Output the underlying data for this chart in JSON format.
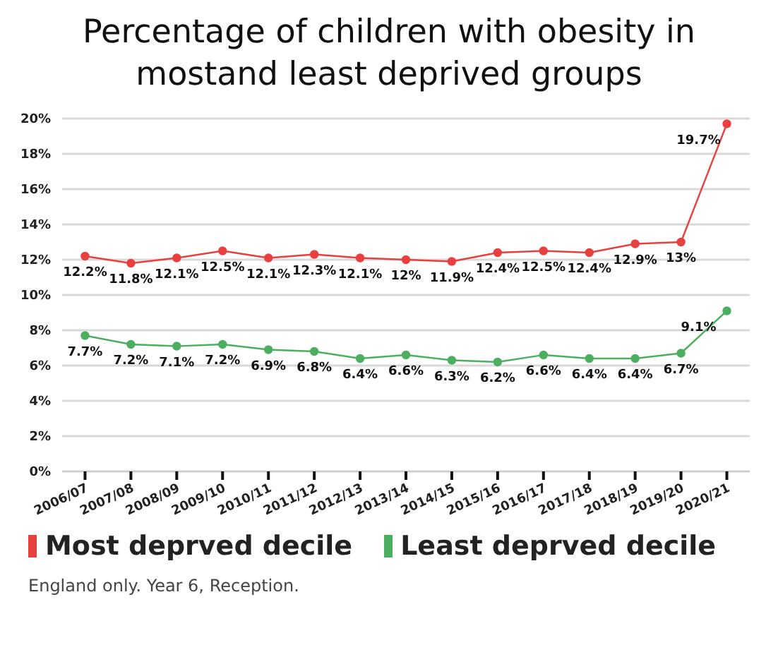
{
  "chart_data": {
    "type": "line",
    "title": "Percentage of children with obesity in mostand least deprived groups",
    "categories": [
      "2006/07",
      "2007/08",
      "2008/09",
      "2009/10",
      "2010/11",
      "2011/12",
      "2012/13",
      "2013/14",
      "2014/15",
      "2015/16",
      "2016/17",
      "2017/18",
      "2018/19",
      "2019/20",
      "2020/21"
    ],
    "series": [
      {
        "name": "Most deprved decile",
        "color": "#e8403f",
        "values": [
          12.2,
          11.8,
          12.1,
          12.5,
          12.1,
          12.3,
          12.1,
          12,
          11.9,
          12.4,
          12.5,
          12.4,
          12.9,
          13,
          19.7
        ],
        "value_labels": [
          "12.2%",
          "11.8%",
          "12.1%",
          "12.5%",
          "12.1%",
          "12.3%",
          "12.1%",
          "12%",
          "11.9%",
          "12.4%",
          "12.5%",
          "12.4%",
          "12.9%",
          "13%",
          "19.7%"
        ]
      },
      {
        "name": "Least deprved decile",
        "color": "#4caf5f",
        "values": [
          7.7,
          7.2,
          7.1,
          7.2,
          6.9,
          6.8,
          6.4,
          6.6,
          6.3,
          6.2,
          6.6,
          6.4,
          6.4,
          6.7,
          9.1
        ],
        "value_labels": [
          "7.7%",
          "7.2%",
          "7.1%",
          "7.2%",
          "6.9%",
          "6.8%",
          "6.4%",
          "6.6%",
          "6.3%",
          "6.2%",
          "6.6%",
          "6.4%",
          "6.4%",
          "6.7%",
          "9.1%"
        ]
      }
    ],
    "ylim": [
      0,
      20
    ],
    "yticks": [
      {
        "value": 0,
        "label": "0%"
      },
      {
        "value": 2,
        "label": "2%"
      },
      {
        "value": 4,
        "label": "4%"
      },
      {
        "value": 6,
        "label": "6%"
      },
      {
        "value": 8,
        "label": "8%"
      },
      {
        "value": 10,
        "label": "10%"
      },
      {
        "value": 12,
        "label": "12%"
      },
      {
        "value": 14,
        "label": "14%"
      },
      {
        "value": 16,
        "label": "16%"
      },
      {
        "value": 18,
        "label": "18%"
      },
      {
        "value": 20,
        "label": "20%"
      }
    ],
    "grid": "y",
    "legend": "bottom",
    "marker": "circle",
    "line_style": "solid",
    "annotations": [
      "England only. Year 6, Reception."
    ]
  }
}
